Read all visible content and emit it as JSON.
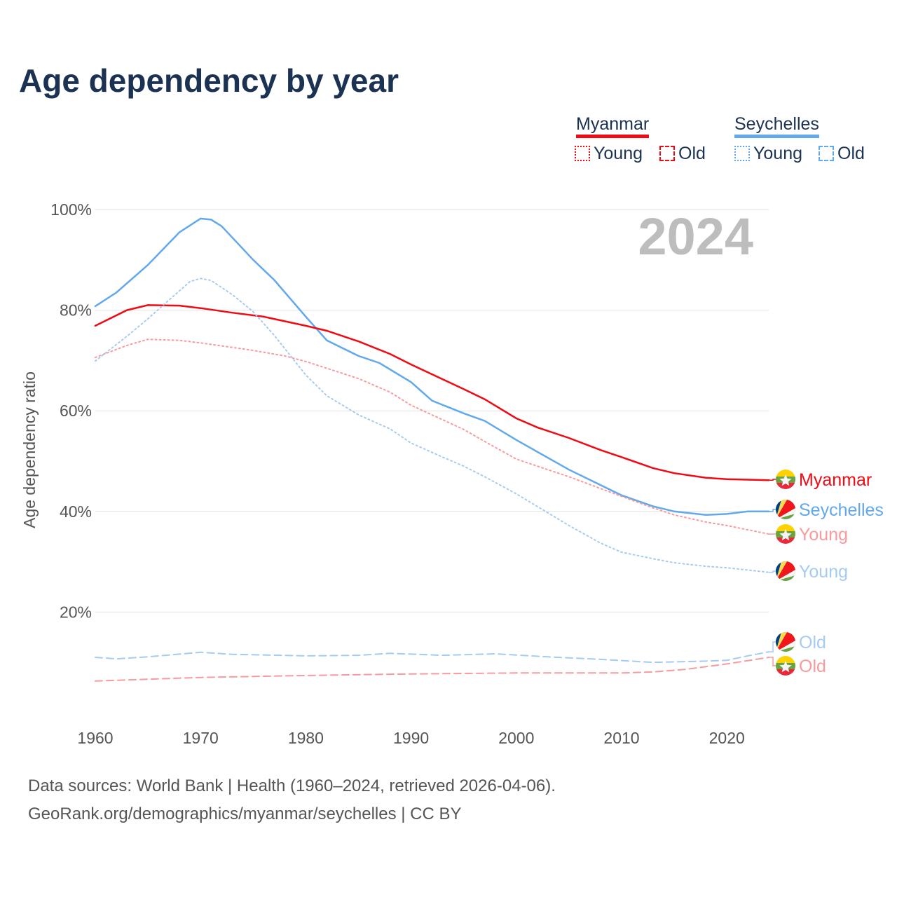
{
  "title": "Age dependency by year",
  "legend": {
    "myanmar": {
      "label": "Myanmar",
      "young": "Young",
      "old": "Old",
      "color": "#f00a14"
    },
    "seychelles": {
      "label": "Seychelles",
      "young": "Young",
      "old": "Old",
      "color": "#62a8ec"
    }
  },
  "year_watermark": "2024",
  "sources": [
    "Data sources: World Bank | Health (1960–2024, retrieved 2026-04-06).",
    "GeoRank.org/demographics/myanmar/seychelles | CC BY"
  ],
  "chart_data": {
    "type": "line",
    "title": "Age dependency by year",
    "xlabel": "",
    "ylabel": "Age dependency ratio",
    "xlim": [
      1960,
      2024
    ],
    "ylim": [
      0,
      100
    ],
    "x_ticks": [
      "1960",
      "1970",
      "1980",
      "1990",
      "2000",
      "2010",
      "2020"
    ],
    "y_ticks": [
      "20%",
      "40%",
      "60%",
      "80%",
      "100%"
    ],
    "grid": true,
    "series": [
      {
        "name": "Seychelles",
        "end_label": "Seychelles",
        "style": "solid",
        "color": "#62a8ec",
        "flag": "seychelles",
        "x": [
          1960,
          1962,
          1965,
          1968,
          1970,
          1971,
          1972,
          1975,
          1977,
          1980,
          1982,
          1985,
          1987,
          1990,
          1992,
          1995,
          1997,
          2000,
          2005,
          2010,
          2013,
          2015,
          2018,
          2020,
          2022,
          2024
        ],
        "y": [
          80.8,
          83.5,
          89,
          95.5,
          98.2,
          98,
          96.7,
          90,
          86,
          78.7,
          74,
          70.9,
          69.5,
          65.7,
          62,
          59.5,
          58,
          54.2,
          48.3,
          43.2,
          41,
          40,
          39.3,
          39.5,
          40,
          40
        ]
      },
      {
        "name": "Myanmar",
        "end_label": "Myanmar",
        "style": "solid",
        "color": "#f00a14",
        "flag": "myanmar",
        "x": [
          1960,
          1963,
          1965,
          1968,
          1970,
          1973,
          1976,
          1980,
          1982,
          1985,
          1988,
          1990,
          1995,
          1997,
          2000,
          2002,
          2005,
          2008,
          2010,
          2013,
          2015,
          2018,
          2020,
          2024
        ],
        "y": [
          76.9,
          80,
          81,
          80.9,
          80.4,
          79.5,
          78.7,
          76.9,
          75.9,
          73.8,
          71.3,
          69.2,
          64.3,
          62.3,
          58.5,
          56.7,
          54.6,
          52.2,
          50.8,
          48.6,
          47.6,
          46.7,
          46.4,
          46.2
        ]
      },
      {
        "name": "Myanmar Young",
        "end_label": "Young",
        "style": "dotted",
        "color": "#f99a9d",
        "flag": "myanmar",
        "x": [
          1960,
          1963,
          1965,
          1968,
          1970,
          1975,
          1978,
          1980,
          1985,
          1988,
          1990,
          1995,
          1997,
          2000,
          2005,
          2010,
          2013,
          2015,
          2018,
          2020,
          2024
        ],
        "y": [
          70.6,
          73,
          74.2,
          74,
          73.5,
          72,
          70.9,
          69.8,
          66.4,
          63.7,
          61.1,
          56.3,
          53.9,
          50.4,
          46.9,
          43,
          40.7,
          39.3,
          37.9,
          37.2,
          35.5
        ]
      },
      {
        "name": "Seychelles Young",
        "end_label": "Young",
        "style": "dotted",
        "color": "#a6cbf2",
        "flag": "seychelles",
        "x": [
          1960,
          1963,
          1965,
          1967,
          1969,
          1970,
          1971,
          1973,
          1975,
          1977,
          1980,
          1982,
          1985,
          1988,
          1990,
          1993,
          1995,
          1997,
          2000,
          2005,
          2008,
          2010,
          2013,
          2015,
          2018,
          2020,
          2024
        ],
        "y": [
          69.9,
          74.8,
          78.3,
          82,
          85.7,
          86.3,
          85.9,
          83.1,
          79.7,
          75,
          67.1,
          63,
          59.2,
          56.4,
          53.6,
          50.8,
          49,
          46.9,
          43.5,
          37.2,
          33.7,
          31.9,
          30.6,
          29.8,
          29.1,
          28.8,
          27.9
        ]
      },
      {
        "name": "Seychelles Old",
        "end_label": "Old",
        "style": "dashed",
        "color": "#a6cbf2",
        "flag": "seychelles",
        "x": [
          1960,
          1962,
          1965,
          1970,
          1973,
          1980,
          1985,
          1988,
          1993,
          1998,
          2003,
          2008,
          2013,
          2017,
          2020,
          2022,
          2024
        ],
        "y": [
          11,
          10.7,
          11.1,
          12,
          11.6,
          11.3,
          11.4,
          11.8,
          11.4,
          11.7,
          11.1,
          10.6,
          10,
          10.2,
          10.4,
          11.3,
          12.1
        ]
      },
      {
        "name": "Myanmar Old",
        "end_label": "Old",
        "style": "dashed",
        "color": "#f99a9d",
        "flag": "myanmar",
        "x": [
          1960,
          1970,
          1980,
          1990,
          2000,
          2010,
          2013,
          2016,
          2020,
          2024
        ],
        "y": [
          6.3,
          7,
          7.4,
          7.7,
          7.9,
          7.9,
          8.1,
          8.6,
          9.7,
          11
        ]
      }
    ]
  }
}
